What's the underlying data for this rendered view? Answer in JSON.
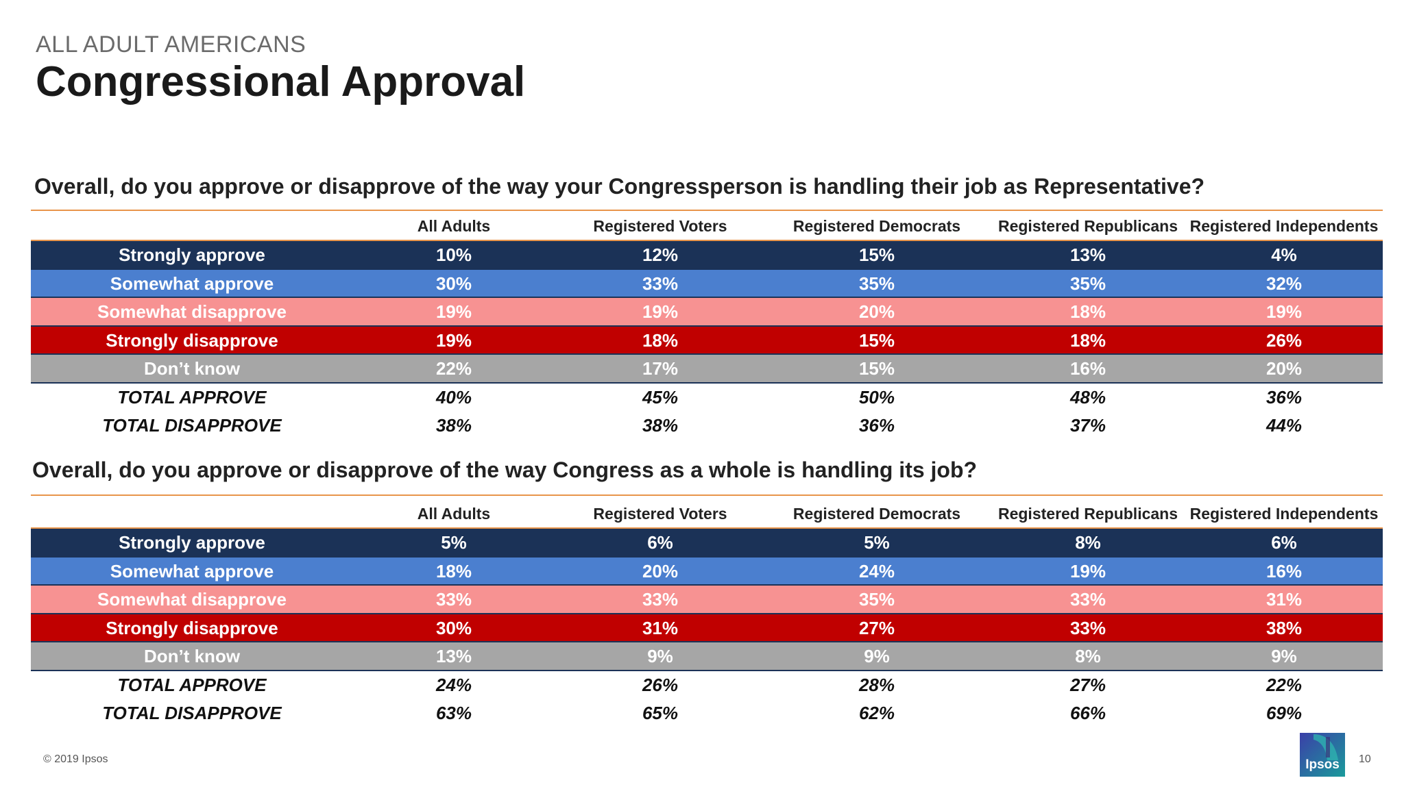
{
  "header": {
    "kicker": "ALL ADULT AMERICANS",
    "title": "Congressional Approval"
  },
  "columns": [
    "All Adults",
    "Registered Voters",
    "Registered Democrats",
    "Registered Republicans",
    "Registered Independents"
  ],
  "tables": [
    {
      "question": "Overall, do you approve or disapprove of the way your Congressperson is handling their job as Representative?",
      "rows": [
        {
          "label": "Strongly approve",
          "values": [
            "10%",
            "12%",
            "15%",
            "13%",
            "4%"
          ]
        },
        {
          "label": "Somewhat approve",
          "values": [
            "30%",
            "33%",
            "35%",
            "35%",
            "32%"
          ]
        },
        {
          "label": "Somewhat disapprove",
          "values": [
            "19%",
            "19%",
            "20%",
            "18%",
            "19%"
          ]
        },
        {
          "label": "Strongly disapprove",
          "values": [
            "19%",
            "18%",
            "15%",
            "18%",
            "26%"
          ]
        },
        {
          "label": "Don’t know",
          "values": [
            "22%",
            "17%",
            "15%",
            "16%",
            "20%"
          ]
        },
        {
          "label": "TOTAL APPROVE",
          "values": [
            "40%",
            "45%",
            "50%",
            "48%",
            "36%"
          ]
        },
        {
          "label": "TOTAL DISAPPROVE",
          "values": [
            "38%",
            "38%",
            "36%",
            "37%",
            "44%"
          ]
        }
      ]
    },
    {
      "question": "Overall, do you approve or disapprove of the way Congress as a whole is handling its job?",
      "rows": [
        {
          "label": "Strongly approve",
          "values": [
            "5%",
            "6%",
            "5%",
            "8%",
            "6%"
          ]
        },
        {
          "label": "Somewhat approve",
          "values": [
            "18%",
            "20%",
            "24%",
            "19%",
            "16%"
          ]
        },
        {
          "label": "Somewhat disapprove",
          "values": [
            "33%",
            "33%",
            "35%",
            "33%",
            "31%"
          ]
        },
        {
          "label": "Strongly disapprove",
          "values": [
            "30%",
            "31%",
            "27%",
            "33%",
            "38%"
          ]
        },
        {
          "label": "Don’t know",
          "values": [
            "13%",
            "9%",
            "9%",
            "8%",
            "9%"
          ]
        },
        {
          "label": "TOTAL APPROVE",
          "values": [
            "24%",
            "26%",
            "28%",
            "27%",
            "22%"
          ]
        },
        {
          "label": "TOTAL DISAPPROVE",
          "values": [
            "63%",
            "65%",
            "62%",
            "66%",
            "69%"
          ]
        }
      ]
    }
  ],
  "chart_data": [
    {
      "type": "table",
      "title": "Overall, do you approve or disapprove of the way your Congressperson is handling their job as Representative?",
      "columns": [
        "All Adults",
        "Registered Voters",
        "Registered Democrats",
        "Registered Republicans",
        "Registered Independents"
      ],
      "rows": [
        "Strongly approve",
        "Somewhat approve",
        "Somewhat disapprove",
        "Strongly disapprove",
        "Don’t know",
        "TOTAL APPROVE",
        "TOTAL DISAPPROVE"
      ],
      "values": [
        [
          10,
          12,
          15,
          13,
          4
        ],
        [
          30,
          33,
          35,
          35,
          32
        ],
        [
          19,
          19,
          20,
          18,
          19
        ],
        [
          19,
          18,
          15,
          18,
          26
        ],
        [
          22,
          17,
          15,
          16,
          20
        ],
        [
          40,
          45,
          50,
          48,
          36
        ],
        [
          38,
          38,
          36,
          37,
          44
        ]
      ]
    },
    {
      "type": "table",
      "title": "Overall, do you approve or disapprove of the way Congress as a whole is handling its job?",
      "columns": [
        "All Adults",
        "Registered Voters",
        "Registered Democrats",
        "Registered Republicans",
        "Registered Independents"
      ],
      "rows": [
        "Strongly approve",
        "Somewhat approve",
        "Somewhat disapprove",
        "Strongly disapprove",
        "Don’t know",
        "TOTAL APPROVE",
        "TOTAL DISAPPROVE"
      ],
      "values": [
        [
          5,
          6,
          5,
          8,
          6
        ],
        [
          18,
          20,
          24,
          19,
          16
        ],
        [
          33,
          33,
          35,
          33,
          31
        ],
        [
          30,
          31,
          27,
          33,
          38
        ],
        [
          13,
          9,
          9,
          8,
          9
        ],
        [
          24,
          26,
          28,
          27,
          22
        ],
        [
          63,
          65,
          62,
          66,
          69
        ]
      ]
    }
  ],
  "colors": {
    "strongly_approve": "#1b3257",
    "somewhat_approve": "#4b7fcf",
    "somewhat_disapprove": "#f79292",
    "strongly_disapprove": "#c00000",
    "dont_know": "#a6a6a6",
    "accent_rule": "#e8944a",
    "logo": "#1f4fa0"
  },
  "footer": {
    "copyright": "© 2019 Ipsos",
    "page_number": "10",
    "logo_text": "Ipsos"
  }
}
